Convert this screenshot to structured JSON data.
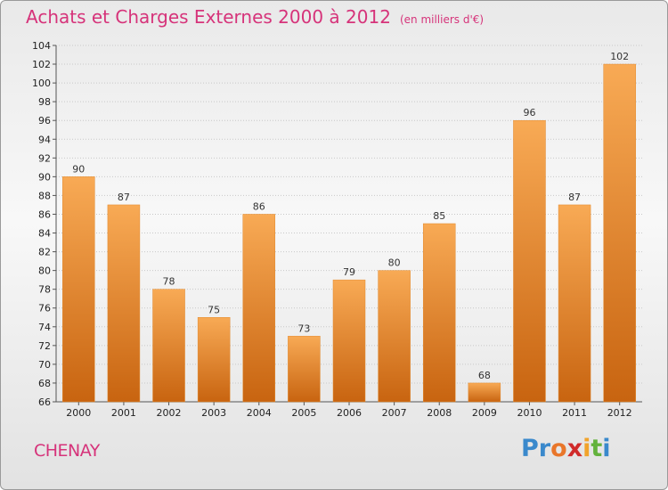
{
  "title": "Achats et Charges Externes 2000 à 2012",
  "subtitle": "(en milliers d'€)",
  "place": "CHENAY",
  "logo": {
    "letters": [
      "P",
      "r",
      "o",
      "x",
      "i",
      "t",
      "i"
    ]
  },
  "colors": {
    "accent": "#d6337a",
    "bar_light": "#f7a64e",
    "bar_dark": "#c96510"
  },
  "chart_data": {
    "type": "bar",
    "categories": [
      "2000",
      "2001",
      "2002",
      "2003",
      "2004",
      "2005",
      "2006",
      "2007",
      "2008",
      "2009",
      "2010",
      "2011",
      "2012"
    ],
    "values": [
      90,
      87,
      78,
      75,
      86,
      73,
      79,
      80,
      85,
      68,
      96,
      87,
      102
    ],
    "ylim": [
      66,
      104
    ],
    "yticks": [
      66,
      68,
      70,
      72,
      74,
      76,
      78,
      80,
      82,
      84,
      86,
      88,
      90,
      92,
      94,
      96,
      98,
      100,
      102,
      104
    ],
    "grid": true,
    "data_labels": true
  }
}
